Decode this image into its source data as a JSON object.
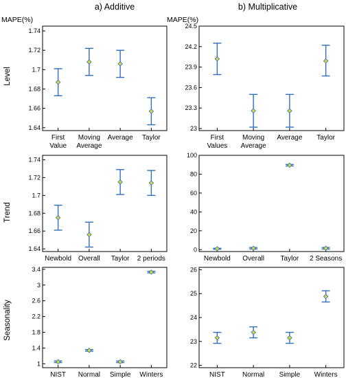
{
  "headers": {
    "left_title": "a) Additive",
    "right_title": "b) Multiplicative",
    "left_ylabel": "MAPE(%)",
    "right_ylabel": "MAPE(%)"
  },
  "row_labels": [
    "Level",
    "Trend",
    "Seasonality"
  ],
  "colors": {
    "errorbar": "#2f6fbf",
    "marker_fill": "#d6d83a",
    "marker_stroke": "#2f6fbf",
    "frame": "#000000"
  },
  "chart_data": [
    {
      "type": "errorbar",
      "row": 0,
      "col": 0,
      "categories": [
        [
          "First",
          "Value"
        ],
        [
          "Moving",
          "Average"
        ],
        [
          "Average"
        ],
        [
          "Taylor"
        ]
      ],
      "values": [
        1.687,
        1.708,
        1.706,
        1.657
      ],
      "lower": [
        1.673,
        1.694,
        1.692,
        1.643
      ],
      "upper": [
        1.701,
        1.722,
        1.72,
        1.671
      ],
      "ylim": [
        1.637,
        1.745
      ],
      "yticks": [
        1.64,
        1.66,
        1.68,
        1.7,
        1.72,
        1.74
      ],
      "ytick_labels": [
        "1.64",
        "1.66",
        "1.68",
        "1.7",
        "1.72",
        "1.74"
      ]
    },
    {
      "type": "errorbar",
      "row": 0,
      "col": 1,
      "categories": [
        [
          "First",
          "Values"
        ],
        [
          "Moving",
          "Average"
        ],
        [
          "Average"
        ],
        [
          "Taylor"
        ]
      ],
      "values": [
        24.02,
        23.26,
        23.26,
        23.99
      ],
      "lower": [
        23.79,
        23.02,
        23.02,
        23.77
      ],
      "upper": [
        24.25,
        23.5,
        23.5,
        24.22
      ],
      "ylim": [
        22.97,
        24.5
      ],
      "yticks": [
        23,
        23.3,
        23.6,
        23.9,
        24.2,
        24.5
      ],
      "ytick_labels": [
        "23",
        "23.3",
        "23.6",
        "23.9",
        "24.2",
        "24.5"
      ]
    },
    {
      "type": "errorbar",
      "row": 1,
      "col": 0,
      "categories": [
        [
          "Newbold"
        ],
        [
          "Overall"
        ],
        [
          "Taylor"
        ],
        [
          "2 periods"
        ]
      ],
      "values": [
        1.675,
        1.656,
        1.715,
        1.714
      ],
      "lower": [
        1.661,
        1.642,
        1.701,
        1.7
      ],
      "upper": [
        1.689,
        1.67,
        1.729,
        1.728
      ],
      "ylim": [
        1.637,
        1.745
      ],
      "yticks": [
        1.64,
        1.66,
        1.68,
        1.7,
        1.72,
        1.74
      ],
      "ytick_labels": [
        "1.64",
        "1.66",
        "1.68",
        "1.7",
        "1.72",
        "1.74"
      ]
    },
    {
      "type": "errorbar",
      "row": 1,
      "col": 1,
      "categories": [
        [
          "Newbold"
        ],
        [
          "Overall"
        ],
        [
          "Taylor"
        ],
        [
          "2 Seasons"
        ]
      ],
      "values": [
        1,
        1.5,
        89.5,
        1.5
      ],
      "lower": [
        0.5,
        0.7,
        88.7,
        0.7
      ],
      "upper": [
        1.5,
        2.3,
        90.3,
        2.3
      ],
      "ylim": [
        -2,
        100
      ],
      "yticks": [
        0,
        20,
        40,
        60,
        80,
        100
      ],
      "ytick_labels": [
        "0",
        "20",
        "40",
        "60",
        "80",
        "100"
      ]
    },
    {
      "type": "errorbar",
      "row": 2,
      "col": 0,
      "categories": [
        [
          "NIST"
        ],
        [
          "Normal"
        ],
        [
          "Simple"
        ],
        [
          "Winters"
        ]
      ],
      "values": [
        1.05,
        1.34,
        1.05,
        3.33
      ],
      "lower": [
        1.03,
        1.32,
        1.03,
        3.31
      ],
      "upper": [
        1.07,
        1.36,
        1.07,
        3.35
      ],
      "ylim": [
        0.9,
        3.45
      ],
      "yticks": [
        1,
        1.4,
        1.8,
        2.2,
        2.6,
        3,
        3.4
      ],
      "ytick_labels": [
        "1",
        "1.4",
        "1.8",
        "2.2",
        "2.6",
        "3",
        "3.4"
      ]
    },
    {
      "type": "errorbar",
      "row": 2,
      "col": 1,
      "categories": [
        [
          "NIST"
        ],
        [
          "Normal"
        ],
        [
          "Simple"
        ],
        [
          "Winters"
        ]
      ],
      "values": [
        23.15,
        23.38,
        23.15,
        24.88
      ],
      "lower": [
        22.92,
        23.15,
        22.92,
        24.65
      ],
      "upper": [
        23.38,
        23.61,
        23.38,
        25.12
      ],
      "ylim": [
        21.9,
        26.1
      ],
      "yticks": [
        22,
        23,
        24,
        25,
        26
      ],
      "ytick_labels": [
        "22",
        "23",
        "24",
        "25",
        "26"
      ]
    }
  ]
}
